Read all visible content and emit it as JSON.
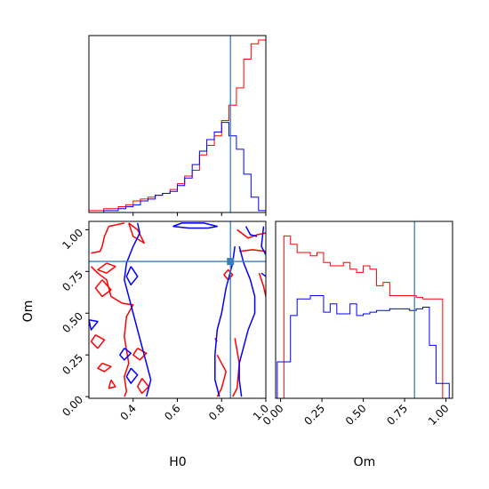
{
  "chart_data": {
    "type": "corner",
    "parameters": [
      "H0",
      "Om"
    ],
    "truth": {
      "H0": 0.84,
      "Om": 0.81,
      "color": "#3b7dba"
    },
    "colors": {
      "red": "#ff0000",
      "blue": "#0000ff",
      "truth": "#3b7dba"
    },
    "panels": [
      {
        "id": "hist-H0",
        "type": "histogram",
        "parameter": "H0",
        "xlim": [
          0.2,
          1.0
        ],
        "bin_edges": [
          0.2,
          0.233,
          0.267,
          0.3,
          0.333,
          0.367,
          0.4,
          0.433,
          0.467,
          0.5,
          0.533,
          0.567,
          0.6,
          0.633,
          0.667,
          0.7,
          0.733,
          0.767,
          0.8,
          0.833,
          0.867,
          0.9,
          0.933,
          0.967,
          1.0
        ],
        "series": [
          {
            "color": "red",
            "counts": [
              1,
              1,
              2,
              2,
              3,
              4,
              6,
              7,
              8,
              9,
              10,
              12,
              15,
              19,
              22,
              30,
              35,
              40,
              48,
              56,
              65,
              80,
              88,
              90
            ]
          },
          {
            "color": "blue",
            "counts": [
              0,
              0,
              1,
              1,
              2,
              3,
              4,
              6,
              7,
              9,
              10,
              11,
              14,
              18,
              25,
              32,
              38,
              42,
              47,
              40,
              33,
              20,
              8,
              1
            ]
          }
        ]
      },
      {
        "id": "contour-H0-Om",
        "type": "contour",
        "xparam": "H0",
        "yparam": "Om",
        "xlim": [
          0.2,
          1.0
        ],
        "ylim": [
          -0.01,
          1.05
        ],
        "xticks": [
          "0.4",
          "0.6",
          "0.8",
          "1.0"
        ],
        "yticks": [
          "0.00",
          "0.25",
          "0.50",
          "0.75",
          "1.00"
        ],
        "xlabel": "H0",
        "ylabel": "Om",
        "series": [
          {
            "color": "red",
            "paths": [
              [
                [
                  0.36,
                  1.04
                ],
                [
                  0.29,
                  1.02
                ],
                [
                  0.27,
                  0.96
                ],
                [
                  0.26,
                  0.9
                ],
                [
                  0.25,
                  0.87
                ],
                [
                  0.21,
                  0.86
                ]
              ],
              [
                [
                  0.21,
                  0.78
                ],
                [
                  0.24,
                  0.74
                ],
                [
                  0.28,
                  0.7
                ],
                [
                  0.3,
                  0.6
                ],
                [
                  0.35,
                  0.56
                ],
                [
                  0.4,
                  0.55
                ],
                [
                  0.37,
                  0.48
                ],
                [
                  0.36,
                  0.36
                ],
                [
                  0.38,
                  0.2
                ],
                [
                  0.36,
                  0.12
                ],
                [
                  0.37,
                  0.03
                ],
                [
                  0.36,
                  0.0
                ]
              ],
              [
                [
                  0.28,
                  0.8
                ],
                [
                  0.32,
                  0.78
                ],
                [
                  0.28,
                  0.74
                ],
                [
                  0.24,
                  0.76
                ],
                [
                  0.28,
                  0.8
                ]
              ],
              [
                [
                  0.26,
                  0.7
                ],
                [
                  0.3,
                  0.64
                ],
                [
                  0.26,
                  0.6
                ],
                [
                  0.23,
                  0.65
                ],
                [
                  0.26,
                  0.7
                ]
              ],
              [
                [
                  0.23,
                  0.37
                ],
                [
                  0.27,
                  0.34
                ],
                [
                  0.24,
                  0.29
                ],
                [
                  0.21,
                  0.33
                ],
                [
                  0.23,
                  0.37
                ]
              ],
              [
                [
                  0.26,
                  0.2
                ],
                [
                  0.3,
                  0.18
                ],
                [
                  0.27,
                  0.15
                ],
                [
                  0.24,
                  0.17
                ],
                [
                  0.26,
                  0.2
                ]
              ],
              [
                [
                  0.3,
                  0.1
                ],
                [
                  0.32,
                  0.06
                ],
                [
                  0.29,
                  0.05
                ],
                [
                  0.3,
                  0.1
                ]
              ],
              [
                [
                  0.42,
                  0.29
                ],
                [
                  0.46,
                  0.26
                ],
                [
                  0.43,
                  0.22
                ],
                [
                  0.4,
                  0.25
                ],
                [
                  0.42,
                  0.29
                ]
              ],
              [
                [
                  0.44,
                  0.11
                ],
                [
                  0.47,
                  0.06
                ],
                [
                  0.44,
                  0.02
                ],
                [
                  0.42,
                  0.06
                ],
                [
                  0.44,
                  0.11
                ]
              ],
              [
                [
                  0.38,
                  1.04
                ],
                [
                  0.4,
                  0.96
                ],
                [
                  0.45,
                  0.92
                ],
                [
                  0.42,
                  1.0
                ],
                [
                  0.38,
                  1.04
                ]
              ],
              [
                [
                  0.78,
                  0.25
                ],
                [
                  0.82,
                  0.15
                ],
                [
                  0.8,
                  0.05
                ],
                [
                  0.78,
                  0.0
                ]
              ],
              [
                [
                  0.86,
                  0.35
                ],
                [
                  0.88,
                  0.2
                ],
                [
                  0.87,
                  0.05
                ],
                [
                  0.85,
                  0.0
                ]
              ],
              [
                [
                  0.87,
                  1.0
                ],
                [
                  0.92,
                  0.95
                ],
                [
                  0.96,
                  0.97
                ],
                [
                  1.0,
                  0.98
                ]
              ],
              [
                [
                  0.88,
                  0.87
                ],
                [
                  0.94,
                  0.88
                ],
                [
                  1.0,
                  0.87
                ]
              ],
              [
                [
                  0.97,
                  0.74
                ],
                [
                  0.99,
                  0.66
                ],
                [
                  1.0,
                  0.6
                ]
              ],
              [
                [
                  0.81,
                  0.73
                ],
                [
                  0.83,
                  0.7
                ],
                [
                  0.85,
                  0.73
                ],
                [
                  0.83,
                  0.76
                ],
                [
                  0.81,
                  0.73
                ]
              ],
              [
                [
                  0.77,
                  0.35
                ],
                [
                  0.78,
                  0.33
                ]
              ]
            ]
          },
          {
            "color": "blue",
            "paths": [
              [
                [
                  0.42,
                  1.04
                ],
                [
                  0.43,
                  0.98
                ],
                [
                  0.4,
                  0.9
                ],
                [
                  0.37,
                  0.8
                ],
                [
                  0.36,
                  0.7
                ],
                [
                  0.38,
                  0.6
                ],
                [
                  0.4,
                  0.5
                ],
                [
                  0.42,
                  0.4
                ],
                [
                  0.44,
                  0.3
                ],
                [
                  0.46,
                  0.2
                ],
                [
                  0.48,
                  0.1
                ],
                [
                  0.46,
                  0.0
                ]
              ],
              [
                [
                  0.39,
                  0.78
                ],
                [
                  0.42,
                  0.72
                ],
                [
                  0.39,
                  0.67
                ],
                [
                  0.37,
                  0.72
                ],
                [
                  0.39,
                  0.78
                ]
              ],
              [
                [
                  0.2,
                  0.46
                ],
                [
                  0.24,
                  0.45
                ],
                [
                  0.21,
                  0.4
                ],
                [
                  0.2,
                  0.46
                ]
              ],
              [
                [
                  0.36,
                  0.29
                ],
                [
                  0.39,
                  0.26
                ],
                [
                  0.36,
                  0.22
                ],
                [
                  0.34,
                  0.25
                ],
                [
                  0.36,
                  0.29
                ]
              ],
              [
                [
                  0.39,
                  0.17
                ],
                [
                  0.42,
                  0.13
                ],
                [
                  0.39,
                  0.08
                ],
                [
                  0.37,
                  0.12
                ],
                [
                  0.39,
                  0.17
                ]
              ],
              [
                [
                  0.58,
                  1.02
                ],
                [
                  0.65,
                  1.01
                ],
                [
                  0.74,
                  1.01
                ],
                [
                  0.78,
                  1.02
                ],
                [
                  0.72,
                  1.04
                ],
                [
                  0.62,
                  1.04
                ],
                [
                  0.58,
                  1.02
                ]
              ],
              [
                [
                  0.91,
                  1.02
                ],
                [
                  0.93,
                  0.97
                ],
                [
                  0.96,
                  0.96
                ]
              ],
              [
                [
                  0.99,
                  1.02
                ],
                [
                  0.98,
                  0.9
                ],
                [
                  1.0,
                  0.85
                ]
              ],
              [
                [
                  0.86,
                  0.9
                ],
                [
                  0.85,
                  0.8
                ],
                [
                  0.83,
                  0.7
                ],
                [
                  0.82,
                  0.65
                ],
                [
                  0.8,
                  0.5
                ],
                [
                  0.78,
                  0.4
                ],
                [
                  0.77,
                  0.25
                ],
                [
                  0.77,
                  0.1
                ],
                [
                  0.79,
                  0.0
                ]
              ],
              [
                [
                  0.88,
                  0.9
                ],
                [
                  0.9,
                  0.8
                ],
                [
                  0.93,
                  0.7
                ],
                [
                  0.95,
                  0.6
                ],
                [
                  0.95,
                  0.5
                ],
                [
                  0.92,
                  0.4
                ],
                [
                  0.9,
                  0.3
                ],
                [
                  0.88,
                  0.2
                ],
                [
                  0.88,
                  0.1
                ],
                [
                  0.89,
                  0.0
                ]
              ],
              [
                [
                  0.98,
                  0.74
                ],
                [
                  1.0,
                  0.72
                ]
              ]
            ]
          }
        ]
      },
      {
        "id": "hist-Om",
        "type": "histogram",
        "parameter": "Om",
        "xlim": [
          -0.03,
          1.04
        ],
        "xticks": [
          "0.00",
          "0.25",
          "0.50",
          "0.75",
          "1.00"
        ],
        "xlabel": "Om",
        "bin_edges": [
          -0.02,
          0.02,
          0.06,
          0.1,
          0.14,
          0.18,
          0.22,
          0.26,
          0.3,
          0.34,
          0.38,
          0.42,
          0.46,
          0.5,
          0.54,
          0.58,
          0.62,
          0.66,
          0.7,
          0.74,
          0.78,
          0.82,
          0.86,
          0.9,
          0.94,
          0.98,
          1.02
        ],
        "series": [
          {
            "color": "red",
            "counts": [
              0,
              98,
              93,
              88,
              88,
              86,
              88,
              82,
              80,
              80,
              82,
              78,
              76,
              80,
              78,
              68,
              70,
              62,
              62,
              62,
              62,
              61,
              60,
              60,
              60,
              0
            ]
          },
          {
            "color": "blue",
            "counts": [
              22,
              22,
              50,
              60,
              60,
              62,
              62,
              52,
              57,
              51,
              51,
              57,
              50,
              51,
              52,
              53,
              53,
              54,
              54,
              54,
              53,
              54,
              55,
              32,
              9,
              9
            ]
          }
        ]
      }
    ]
  }
}
